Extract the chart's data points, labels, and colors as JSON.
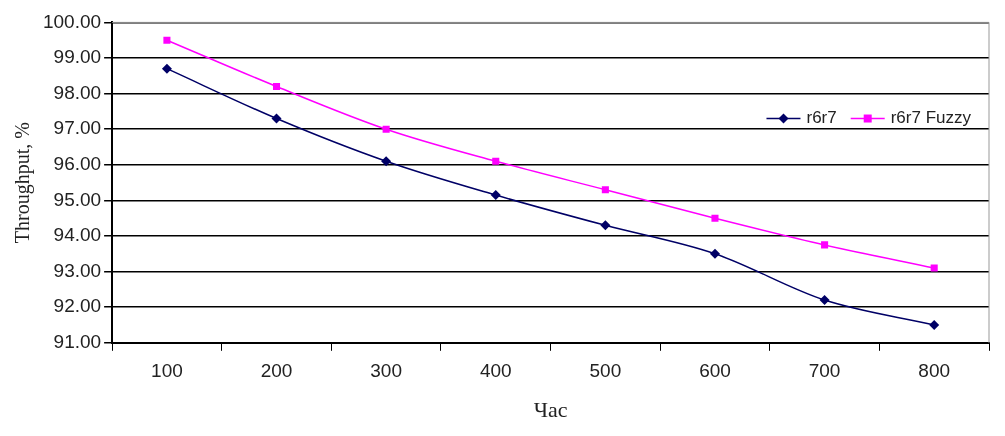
{
  "chart_data": {
    "type": "line",
    "xlabel": "Час",
    "ylabel": "Throughput, %",
    "categories": [
      "100",
      "200",
      "300",
      "400",
      "500",
      "600",
      "700",
      "800"
    ],
    "series": [
      {
        "name": "r6r7",
        "color": "#000066",
        "marker": "diamond",
        "values": [
          98.7,
          97.3,
          96.1,
          95.15,
          94.3,
          93.5,
          92.2,
          91.5
        ]
      },
      {
        "name": "r6r7 Fuzzy",
        "color": "#ff00ff",
        "marker": "square",
        "values": [
          99.5,
          98.2,
          97.0,
          96.1,
          95.3,
          94.5,
          93.75,
          93.1
        ]
      }
    ],
    "ylim": [
      91,
      100
    ],
    "yticks": [
      {
        "value": 91,
        "label": "91.00"
      },
      {
        "value": 92,
        "label": "92.00"
      },
      {
        "value": 93,
        "label": "93.00"
      },
      {
        "value": 94,
        "label": "94.00"
      },
      {
        "value": 95,
        "label": "95.00"
      },
      {
        "value": 96,
        "label": "96.00"
      },
      {
        "value": 97,
        "label": "97.00"
      },
      {
        "value": 98,
        "label": "98.00"
      },
      {
        "value": 99,
        "label": "99.00"
      },
      {
        "value": 100,
        "label": "100.00"
      }
    ],
    "grid": "y",
    "legend": "right",
    "line_style": "solid"
  }
}
